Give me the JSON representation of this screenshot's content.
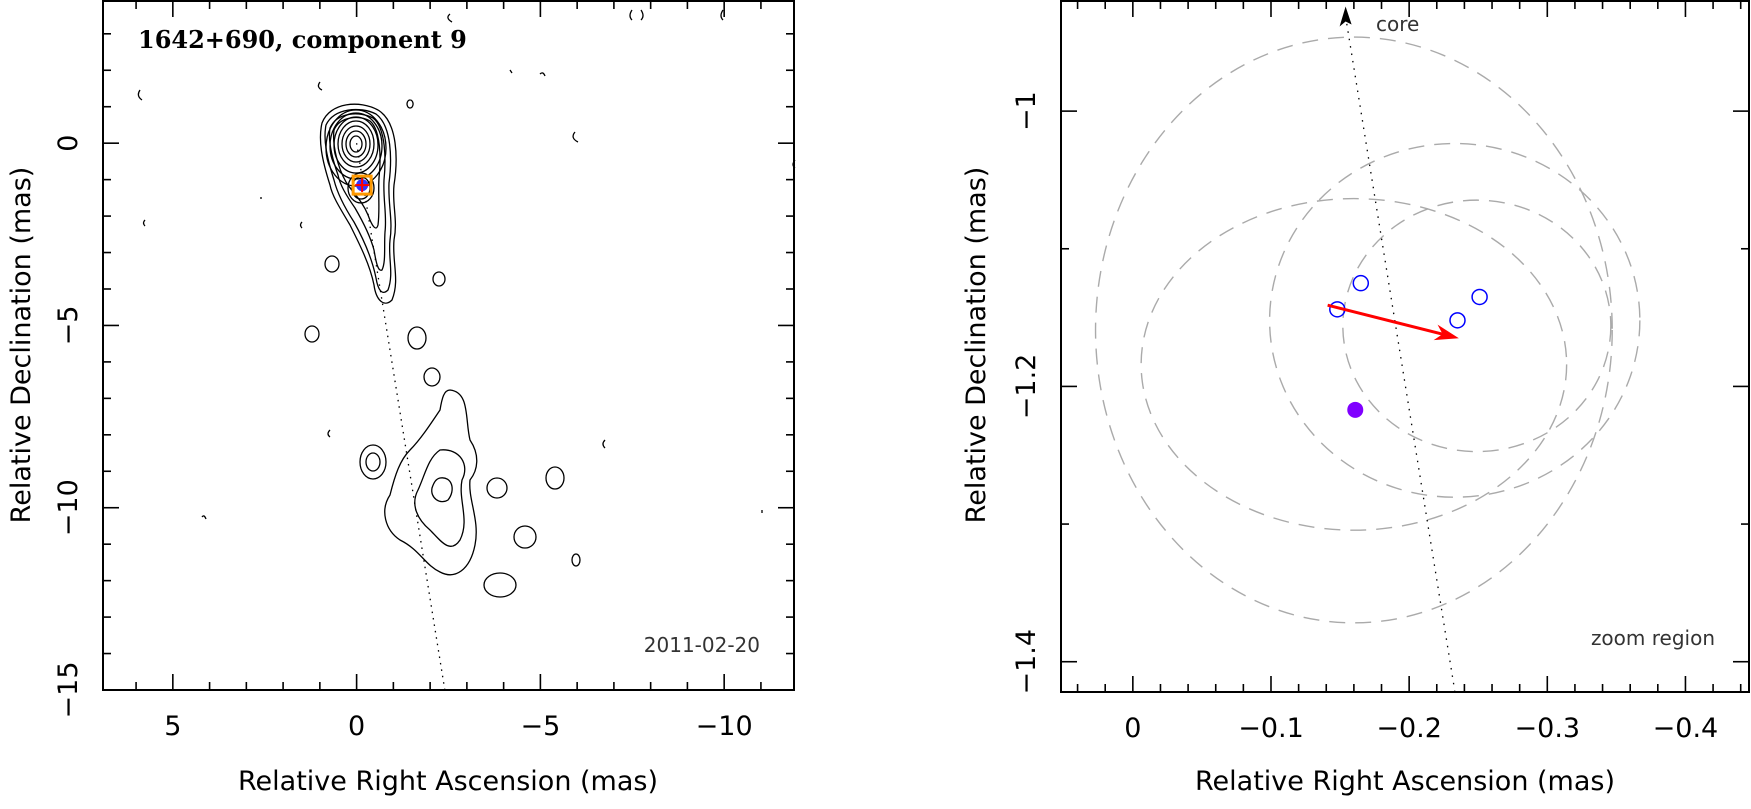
{
  "chart_data": [
    {
      "type": "contour",
      "title": "1642+690, component 9",
      "date_label": "2011-02-20",
      "xlabel": "Relative Right Ascension (mas)",
      "ylabel": "Relative Declination (mas)",
      "xlim": [
        6.9,
        -11.9
      ],
      "ylim": [
        -15,
        3.9
      ],
      "xticks": [
        5,
        0,
        -5,
        -10
      ],
      "xtick_labels": [
        "5",
        "0",
        "−5",
        "−10"
      ],
      "yticks": [
        0,
        -5,
        -10,
        -15
      ],
      "ytick_labels": [
        "0",
        "−5",
        "−10",
        "−15"
      ],
      "component_position": {
        "x": -0.15,
        "y": -1.15
      },
      "ridge_line": {
        "x": [
          0,
          -2.4
        ],
        "y": [
          0,
          -15
        ]
      },
      "colors": {
        "marker_box": "#ff9900",
        "marker_fill": "#3333ff",
        "marker_cross": "#ff0000"
      }
    },
    {
      "type": "scatter",
      "xlabel": "Relative Right Ascension (mas)",
      "ylabel": "Relative Declination (mas)",
      "xlim": [
        0.052,
        -0.446
      ],
      "ylim": [
        -1.422,
        -0.92
      ],
      "xticks": [
        0,
        -0.1,
        -0.2,
        -0.3,
        -0.4
      ],
      "xtick_labels": [
        "0",
        "−0.1",
        "−0.2",
        "−0.3",
        "−0.4"
      ],
      "yticks": [
        -1,
        -1.2,
        -1.4
      ],
      "ytick_labels": [
        "−1",
        "−1.2",
        "−1.4"
      ],
      "core_label": "core",
      "region_label": "zoom region",
      "open_points": [
        {
          "x": -0.148,
          "y": -1.144
        },
        {
          "x": -0.165,
          "y": -1.125
        },
        {
          "x": -0.235,
          "y": -1.152
        },
        {
          "x": -0.251,
          "y": -1.135
        }
      ],
      "filled_point": {
        "x": -0.161,
        "y": -1.217
      },
      "motion_vector": {
        "x0": -0.141,
        "y0": -1.141,
        "x1": -0.236,
        "y1": -1.165
      },
      "core_direction_line": {
        "x0": -0.154,
        "y0": -0.924,
        "x1": -0.233,
        "y1": -1.421
      },
      "beam_ellipses": [
        {
          "x": -0.16,
          "y": -1.159,
          "rx": 0.187,
          "ry": 0.212
        },
        {
          "x": -0.16,
          "y": -1.184,
          "rx": 0.154,
          "ry": 0.12
        },
        {
          "x": -0.233,
          "y": -1.152,
          "rx": 0.134,
          "ry": 0.128
        },
        {
          "x": -0.249,
          "y": -1.156,
          "rx": 0.097,
          "ry": 0.091
        }
      ],
      "colors": {
        "open_points": "#0000ff",
        "filled_point": "#8000ff",
        "vector": "#ff0000",
        "ellipses": "#aaaaaa"
      }
    }
  ]
}
